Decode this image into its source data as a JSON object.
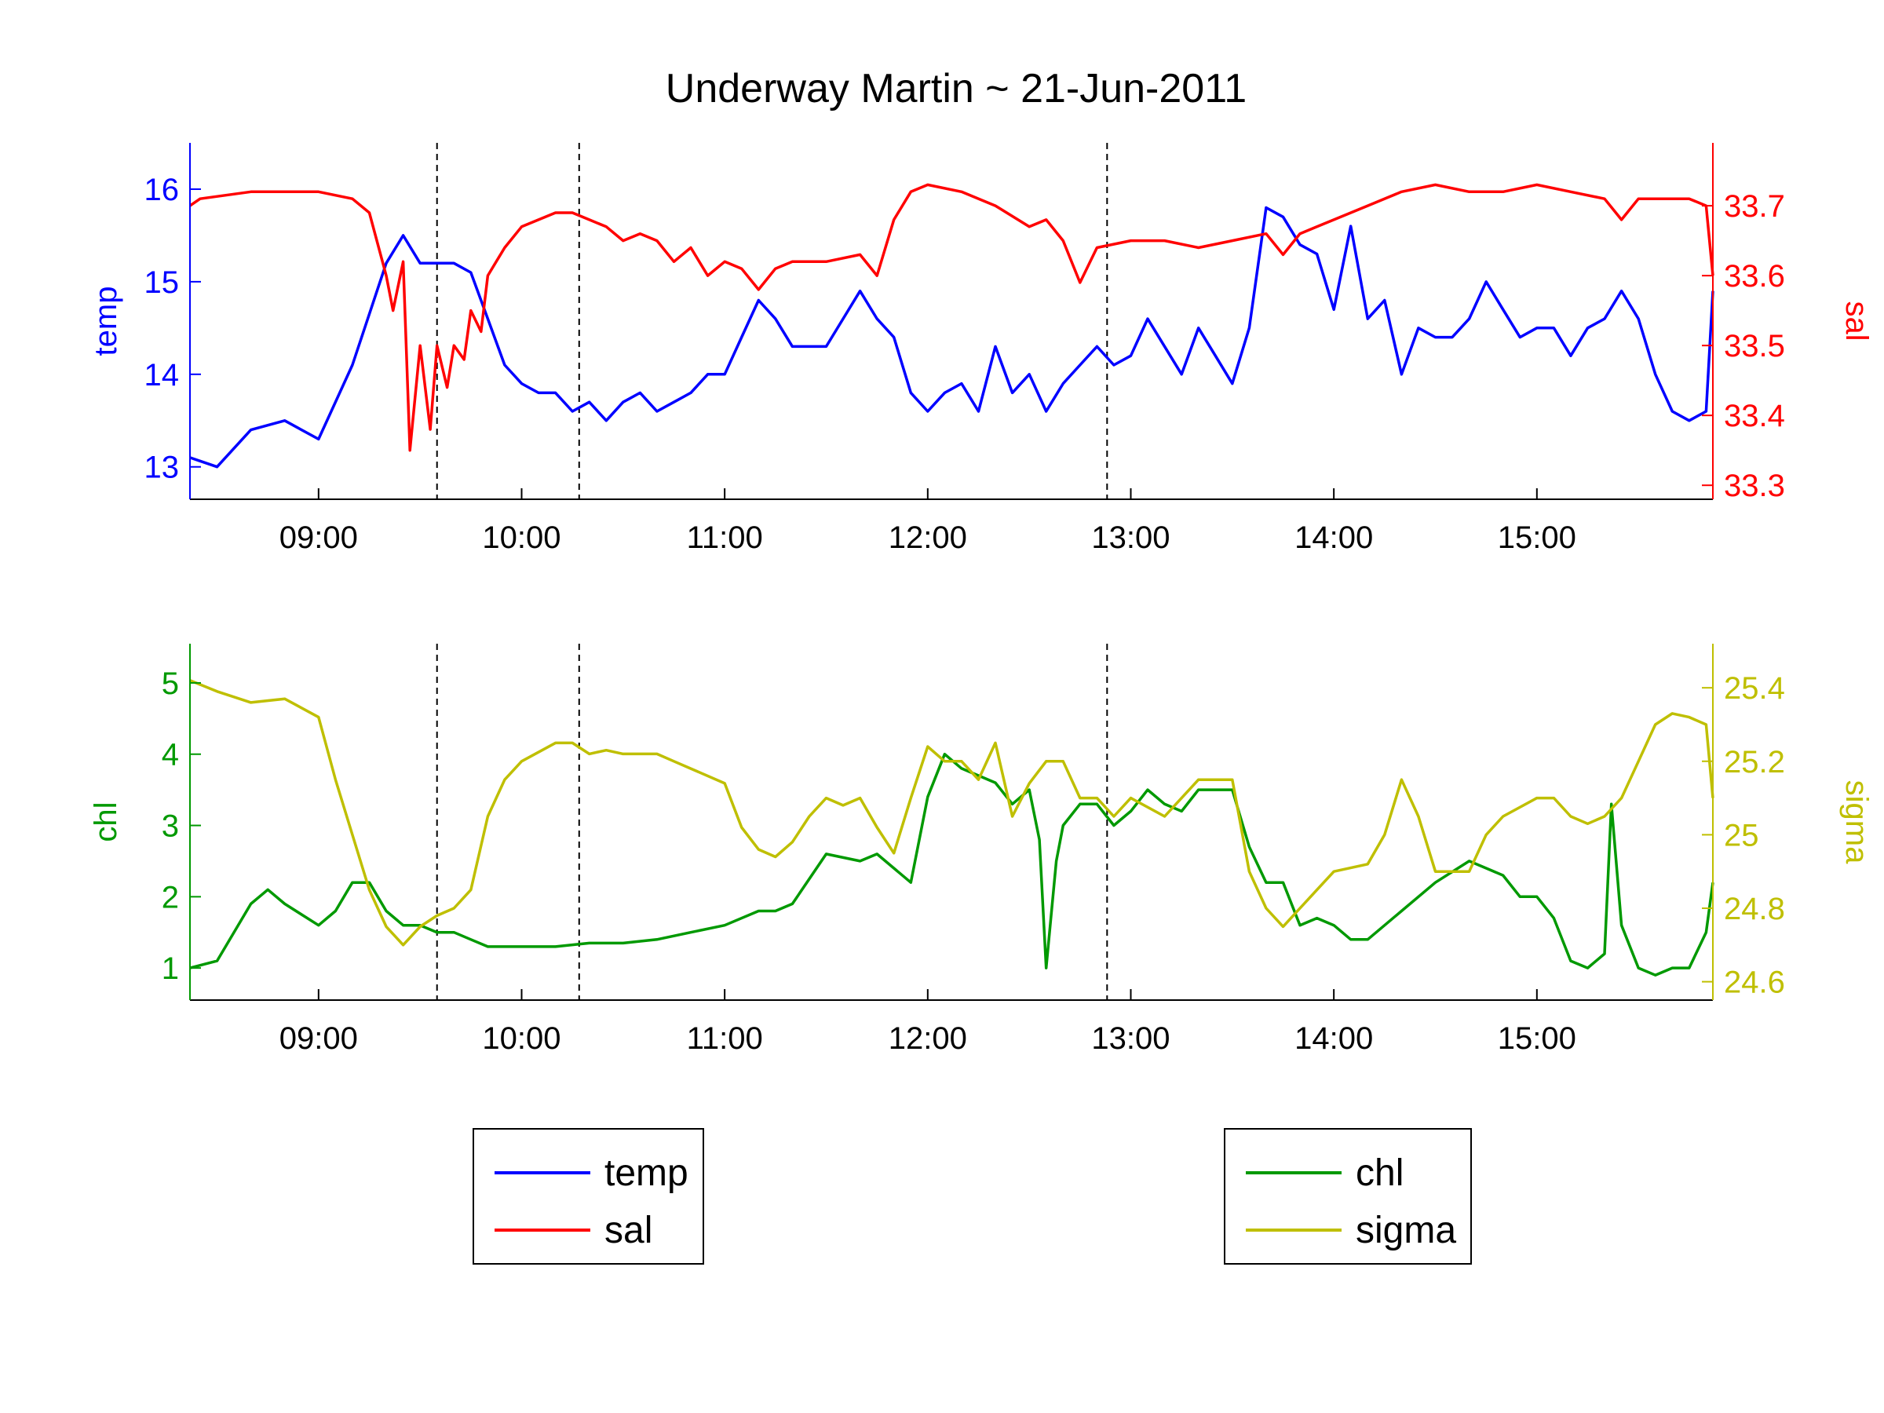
{
  "colors": {
    "temp": "#0000ff",
    "sal": "#ff0000",
    "chl": "#009900",
    "sigma": "#bfbf00",
    "marker": "#000000",
    "axis": "#000000"
  },
  "chart_data": [
    {
      "type": "line",
      "title": "Underway Martin ~ 21-Jun-2011",
      "x_range": [
        "08:22",
        "15:52"
      ],
      "x_ticks": [
        "09:00",
        "10:00",
        "11:00",
        "12:00",
        "13:00",
        "14:00",
        "15:00"
      ],
      "vlines": [
        "09:35",
        "10:17",
        "12:53"
      ],
      "grid": false,
      "left_axis": {
        "label": "temp",
        "range": [
          12.65,
          16.5
        ],
        "ticks": [
          13,
          14,
          15,
          16
        ]
      },
      "right_axis": {
        "label": "sal",
        "range": [
          33.28,
          33.79
        ],
        "ticks": [
          33.3,
          33.4,
          33.5,
          33.6,
          33.7
        ]
      },
      "legend": {
        "placement": "bottom-left",
        "entries": [
          "temp",
          "sal"
        ]
      },
      "series": [
        {
          "name": "temp",
          "axis": "left",
          "x": [
            "08:22",
            "08:30",
            "08:40",
            "08:50",
            "09:00",
            "09:10",
            "09:20",
            "09:25",
            "09:30",
            "09:35",
            "09:40",
            "09:45",
            "09:50",
            "09:55",
            "10:00",
            "10:05",
            "10:10",
            "10:15",
            "10:20",
            "10:25",
            "10:30",
            "10:35",
            "10:40",
            "10:45",
            "10:50",
            "10:55",
            "11:00",
            "11:05",
            "11:10",
            "11:15",
            "11:20",
            "11:25",
            "11:30",
            "11:35",
            "11:40",
            "11:45",
            "11:50",
            "11:55",
            "12:00",
            "12:05",
            "12:10",
            "12:15",
            "12:20",
            "12:25",
            "12:30",
            "12:35",
            "12:40",
            "12:45",
            "12:50",
            "12:55",
            "13:00",
            "13:05",
            "13:10",
            "13:15",
            "13:20",
            "13:25",
            "13:30",
            "13:35",
            "13:40",
            "13:45",
            "13:50",
            "13:55",
            "14:00",
            "14:05",
            "14:10",
            "14:15",
            "14:20",
            "14:25",
            "14:30",
            "14:35",
            "14:40",
            "14:45",
            "14:50",
            "14:55",
            "15:00",
            "15:05",
            "15:10",
            "15:15",
            "15:20",
            "15:25",
            "15:30",
            "15:35",
            "15:40",
            "15:45",
            "15:50",
            "15:52"
          ],
          "y": [
            13.1,
            13.0,
            13.4,
            13.5,
            13.3,
            14.1,
            15.2,
            15.5,
            15.2,
            15.2,
            15.2,
            15.1,
            14.6,
            14.1,
            13.9,
            13.8,
            13.8,
            13.6,
            13.7,
            13.5,
            13.7,
            13.8,
            13.6,
            13.7,
            13.8,
            14.0,
            14.0,
            14.4,
            14.8,
            14.6,
            14.3,
            14.3,
            14.3,
            14.6,
            14.9,
            14.6,
            14.4,
            13.8,
            13.6,
            13.8,
            13.9,
            13.6,
            14.3,
            13.8,
            14.0,
            13.6,
            13.9,
            14.1,
            14.3,
            14.1,
            14.2,
            14.6,
            14.3,
            14.0,
            14.5,
            14.2,
            13.9,
            14.5,
            15.8,
            15.7,
            15.4,
            15.3,
            14.7,
            15.6,
            14.6,
            14.8,
            14.0,
            14.5,
            14.4,
            14.4,
            14.6,
            15.0,
            14.7,
            14.4,
            14.5,
            14.5,
            14.2,
            14.5,
            14.6,
            14.9,
            14.6,
            14.0,
            13.6,
            13.5,
            13.6,
            14.9
          ]
        },
        {
          "name": "sal",
          "axis": "right",
          "x": [
            "08:22",
            "08:25",
            "08:40",
            "08:50",
            "09:00",
            "09:10",
            "09:15",
            "09:20",
            "09:22",
            "09:25",
            "09:27",
            "09:30",
            "09:33",
            "09:35",
            "09:38",
            "09:40",
            "09:43",
            "09:45",
            "09:48",
            "09:50",
            "09:55",
            "10:00",
            "10:10",
            "10:15",
            "10:20",
            "10:25",
            "10:30",
            "10:35",
            "10:40",
            "10:45",
            "10:50",
            "10:55",
            "11:00",
            "11:05",
            "11:10",
            "11:15",
            "11:20",
            "11:30",
            "11:40",
            "11:45",
            "11:50",
            "11:55",
            "12:00",
            "12:10",
            "12:20",
            "12:30",
            "12:35",
            "12:40",
            "12:45",
            "12:50",
            "13:00",
            "13:10",
            "13:20",
            "13:30",
            "13:40",
            "13:45",
            "13:50",
            "13:55",
            "14:00",
            "14:10",
            "14:20",
            "14:30",
            "14:40",
            "14:50",
            "15:00",
            "15:10",
            "15:20",
            "15:25",
            "15:30",
            "15:40",
            "15:45",
            "15:50",
            "15:52"
          ],
          "y": [
            33.7,
            33.71,
            33.72,
            33.72,
            33.72,
            33.71,
            33.69,
            33.6,
            33.55,
            33.62,
            33.35,
            33.5,
            33.38,
            33.5,
            33.44,
            33.5,
            33.48,
            33.55,
            33.52,
            33.6,
            33.64,
            33.67,
            33.69,
            33.69,
            33.68,
            33.67,
            33.65,
            33.66,
            33.65,
            33.62,
            33.64,
            33.6,
            33.62,
            33.61,
            33.58,
            33.61,
            33.62,
            33.62,
            33.63,
            33.6,
            33.68,
            33.72,
            33.73,
            33.72,
            33.7,
            33.67,
            33.68,
            33.65,
            33.59,
            33.64,
            33.65,
            33.65,
            33.64,
            33.65,
            33.66,
            33.63,
            33.66,
            33.67,
            33.68,
            33.7,
            33.72,
            33.73,
            33.72,
            33.72,
            33.73,
            33.72,
            33.71,
            33.68,
            33.71,
            33.71,
            33.71,
            33.7,
            33.6
          ]
        }
      ]
    },
    {
      "type": "line",
      "title": "",
      "x_range": [
        "08:22",
        "15:52"
      ],
      "x_ticks": [
        "09:00",
        "10:00",
        "11:00",
        "12:00",
        "13:00",
        "14:00",
        "15:00"
      ],
      "vlines": [
        "09:35",
        "10:17",
        "12:53"
      ],
      "grid": false,
      "left_axis": {
        "label": "chl",
        "range": [
          0.55,
          5.55
        ],
        "ticks": [
          1,
          2,
          3,
          4,
          5
        ]
      },
      "right_axis": {
        "label": "sigma",
        "range": [
          24.55,
          25.52
        ],
        "ticks": [
          24.6,
          24.8,
          25,
          25.2,
          25.4
        ]
      },
      "legend": {
        "placement": "bottom-right",
        "entries": [
          "chl",
          "sigma"
        ]
      },
      "series": [
        {
          "name": "chl",
          "axis": "left",
          "x": [
            "08:22",
            "08:30",
            "08:40",
            "08:45",
            "08:50",
            "09:00",
            "09:05",
            "09:10",
            "09:15",
            "09:20",
            "09:25",
            "09:30",
            "09:35",
            "09:40",
            "09:45",
            "09:50",
            "10:00",
            "10:10",
            "10:20",
            "10:30",
            "10:40",
            "10:50",
            "11:00",
            "11:10",
            "11:15",
            "11:20",
            "11:30",
            "11:40",
            "11:45",
            "11:50",
            "11:55",
            "12:00",
            "12:05",
            "12:10",
            "12:15",
            "12:20",
            "12:25",
            "12:30",
            "12:33",
            "12:35",
            "12:38",
            "12:40",
            "12:45",
            "12:50",
            "12:55",
            "13:00",
            "13:05",
            "13:10",
            "13:15",
            "13:20",
            "13:25",
            "13:30",
            "13:35",
            "13:40",
            "13:45",
            "13:50",
            "13:55",
            "14:00",
            "14:05",
            "14:10",
            "14:20",
            "14:30",
            "14:40",
            "14:45",
            "14:50",
            "14:55",
            "15:00",
            "15:05",
            "15:10",
            "15:15",
            "15:20",
            "15:22",
            "15:25",
            "15:30",
            "15:35",
            "15:40",
            "15:45",
            "15:50",
            "15:52"
          ],
          "y": [
            1.0,
            1.1,
            1.9,
            2.1,
            1.9,
            1.6,
            1.8,
            2.2,
            2.2,
            1.8,
            1.6,
            1.6,
            1.5,
            1.5,
            1.4,
            1.3,
            1.3,
            1.3,
            1.35,
            1.35,
            1.4,
            1.5,
            1.6,
            1.8,
            1.8,
            1.9,
            2.6,
            2.5,
            2.6,
            2.4,
            2.2,
            3.4,
            4.0,
            3.8,
            3.7,
            3.6,
            3.3,
            3.5,
            2.8,
            1.0,
            2.5,
            3.0,
            3.3,
            3.3,
            3.0,
            3.2,
            3.5,
            3.3,
            3.2,
            3.5,
            3.5,
            3.5,
            2.7,
            2.2,
            2.2,
            1.6,
            1.7,
            1.6,
            1.4,
            1.4,
            1.8,
            2.2,
            2.5,
            2.4,
            2.3,
            2.0,
            2.0,
            1.7,
            1.1,
            1.0,
            1.2,
            3.3,
            1.6,
            1.0,
            0.9,
            1.0,
            1.0,
            1.5,
            2.2
          ]
        },
        {
          "name": "sigma",
          "axis": "right",
          "x": [
            "08:22",
            "08:30",
            "08:40",
            "08:50",
            "09:00",
            "09:05",
            "09:10",
            "09:15",
            "09:20",
            "09:25",
            "09:30",
            "09:35",
            "09:40",
            "09:45",
            "09:50",
            "09:55",
            "10:00",
            "10:10",
            "10:15",
            "10:20",
            "10:25",
            "10:30",
            "10:35",
            "10:40",
            "10:45",
            "10:50",
            "11:00",
            "11:05",
            "11:10",
            "11:15",
            "11:20",
            "11:25",
            "11:30",
            "11:35",
            "11:40",
            "11:45",
            "11:50",
            "11:55",
            "12:00",
            "12:05",
            "12:10",
            "12:15",
            "12:20",
            "12:25",
            "12:30",
            "12:35",
            "12:40",
            "12:45",
            "12:50",
            "12:55",
            "13:00",
            "13:10",
            "13:20",
            "13:30",
            "13:35",
            "13:40",
            "13:45",
            "13:50",
            "13:55",
            "14:00",
            "14:10",
            "14:15",
            "14:20",
            "14:25",
            "14:30",
            "14:35",
            "14:40",
            "14:45",
            "14:50",
            "15:00",
            "15:05",
            "15:10",
            "15:15",
            "15:20",
            "15:25",
            "15:30",
            "15:35",
            "15:40",
            "15:45",
            "15:50",
            "15:52"
          ],
          "y": [
            25.42,
            25.39,
            25.36,
            25.37,
            25.32,
            25.15,
            25.0,
            24.85,
            24.75,
            24.7,
            24.75,
            24.78,
            24.8,
            24.85,
            25.05,
            25.15,
            25.2,
            25.25,
            25.25,
            25.22,
            25.23,
            25.22,
            25.22,
            25.22,
            25.2,
            25.18,
            25.14,
            25.02,
            24.96,
            24.94,
            24.98,
            25.05,
            25.1,
            25.08,
            25.1,
            25.02,
            24.95,
            25.1,
            25.24,
            25.2,
            25.2,
            25.15,
            25.25,
            25.05,
            25.14,
            25.2,
            25.2,
            25.1,
            25.1,
            25.05,
            25.1,
            25.05,
            25.15,
            25.15,
            24.9,
            24.8,
            24.75,
            24.8,
            24.85,
            24.9,
            24.92,
            25.0,
            25.15,
            25.05,
            24.9,
            24.9,
            24.9,
            25.0,
            25.05,
            25.1,
            25.1,
            25.05,
            25.03,
            25.05,
            25.1,
            25.2,
            25.3,
            25.33,
            25.32,
            25.3,
            25.1
          ]
        }
      ]
    }
  ]
}
